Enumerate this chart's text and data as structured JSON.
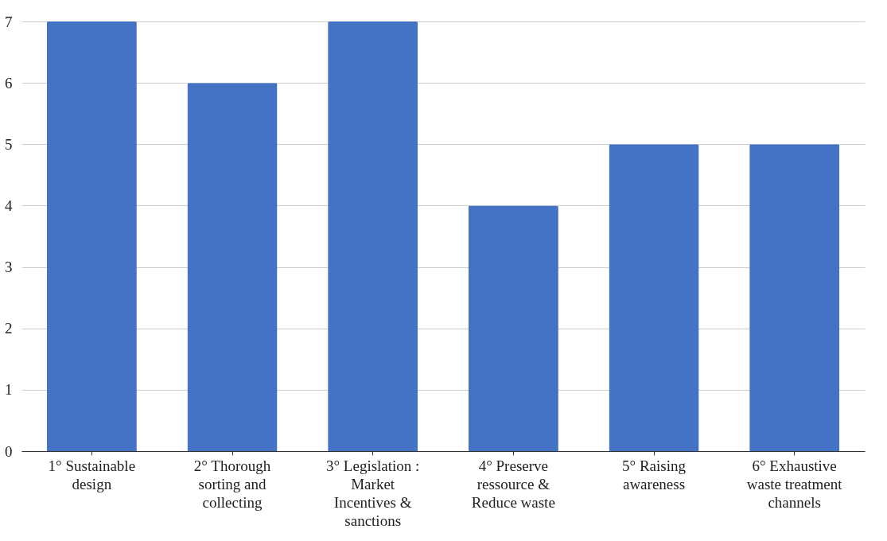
{
  "chart_data": {
    "type": "bar",
    "categories": [
      "1° Sustainable design",
      "2° Thorough sorting and collecting",
      "3° Legislation : Market Incentives & sanctions",
      "4° Preserve ressource & Reduce waste",
      "5° Raising awareness",
      "6° Exhaustive waste treatment channels"
    ],
    "values": [
      7,
      6,
      7,
      4,
      5,
      5
    ],
    "color": "#4472c4",
    "ylim": [
      0,
      7
    ],
    "yticks": [
      0,
      1,
      2,
      3,
      4,
      5,
      6,
      7
    ],
    "grid": "y"
  }
}
